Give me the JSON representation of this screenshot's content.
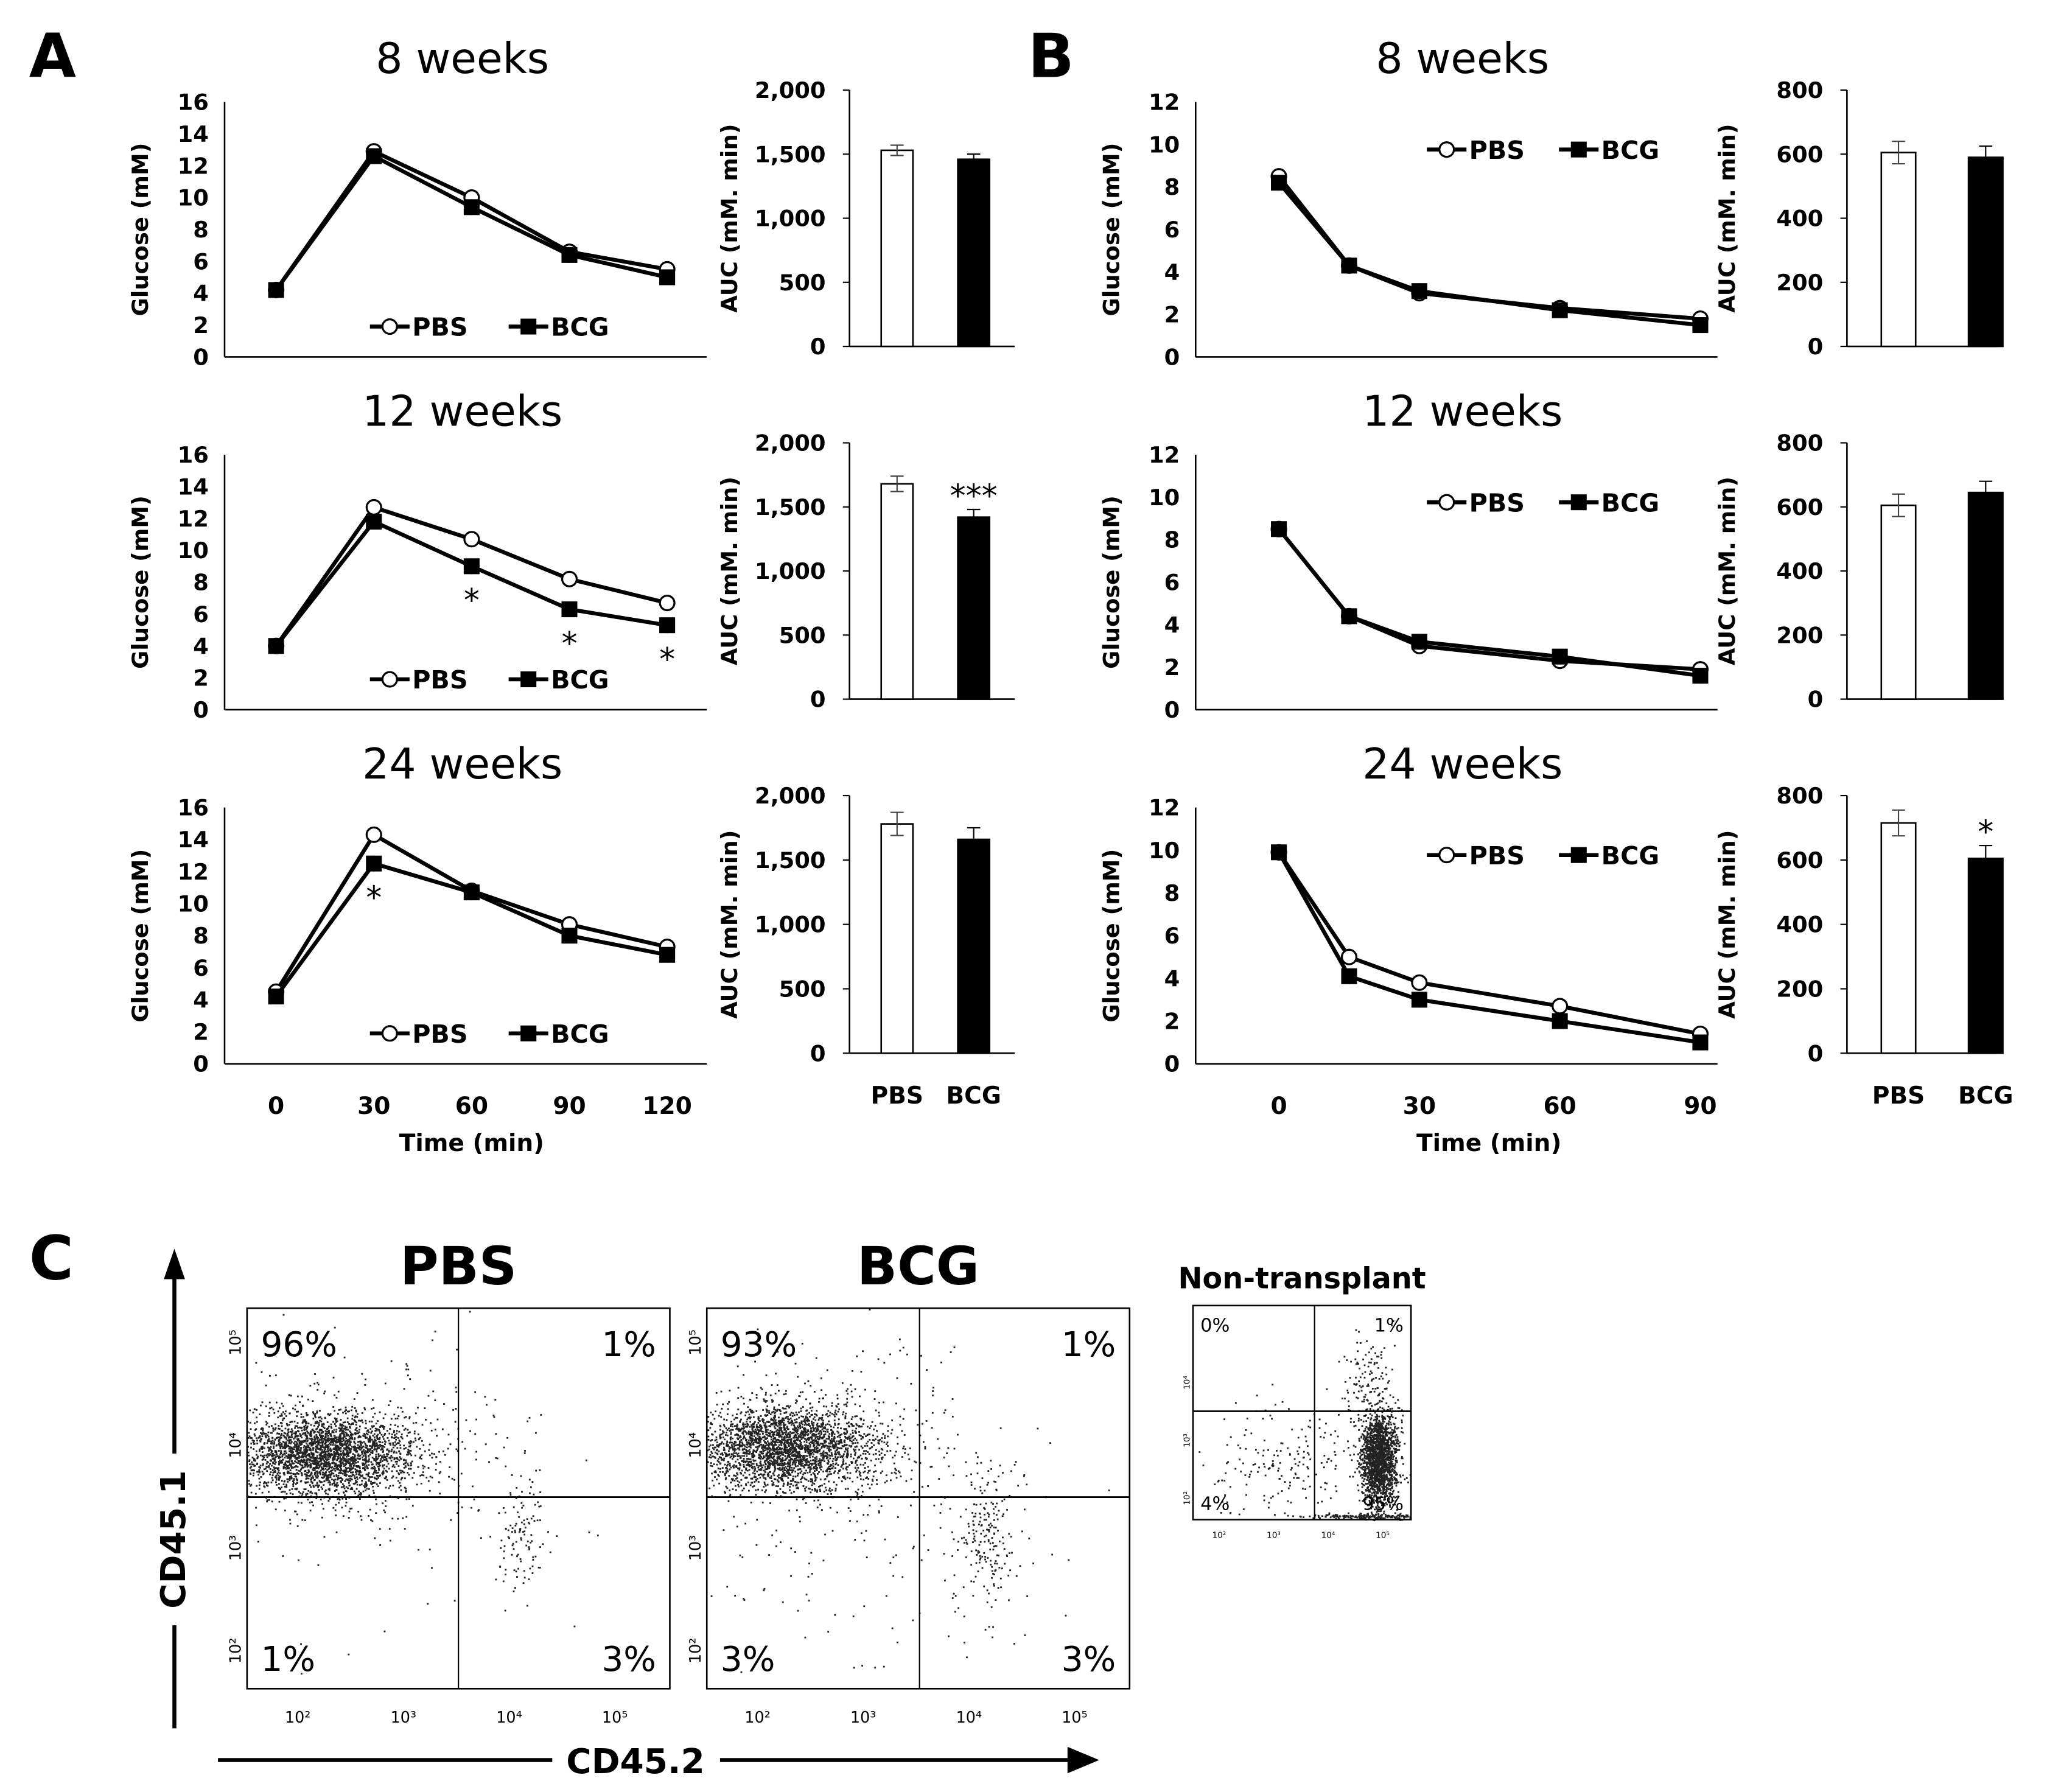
{
  "panel_labels": {
    "a": "A",
    "b": "B",
    "c": "C"
  },
  "chart_data": [
    {
      "id": "A8",
      "type": "line",
      "title": "8 weeks",
      "ylabel": "Glucose (mM)",
      "xlabel": "Time (min)",
      "x": [
        0,
        30,
        60,
        90,
        120
      ],
      "ylim": [
        0,
        16
      ],
      "yticks": [
        0,
        2,
        4,
        6,
        8,
        10,
        12,
        14,
        16
      ],
      "xticks": [
        "0",
        "30",
        "60",
        "90",
        "120"
      ],
      "series": [
        {
          "name": "PBS",
          "values": [
            4.2,
            12.9,
            10.0,
            6.6,
            5.5
          ]
        },
        {
          "name": "BCG",
          "values": [
            4.2,
            12.6,
            9.4,
            6.4,
            5.0
          ]
        }
      ],
      "stars": []
    },
    {
      "id": "A12",
      "type": "line",
      "title": "12 weeks",
      "ylabel": "Glucose (mM)",
      "xlabel": "Time (min)",
      "x": [
        0,
        30,
        60,
        90,
        120
      ],
      "ylim": [
        0,
        16
      ],
      "yticks": [
        0,
        2,
        4,
        6,
        8,
        10,
        12,
        14,
        16
      ],
      "xticks": [
        "0",
        "30",
        "60",
        "90",
        "120"
      ],
      "series": [
        {
          "name": "PBS",
          "values": [
            4.0,
            12.7,
            10.7,
            8.2,
            6.7
          ]
        },
        {
          "name": "BCG",
          "values": [
            4.0,
            11.8,
            9.0,
            6.3,
            5.3
          ]
        }
      ],
      "stars": [
        {
          "x": 60,
          "label": "*"
        },
        {
          "x": 90,
          "label": "*"
        },
        {
          "x": 120,
          "label": "*"
        }
      ]
    },
    {
      "id": "A24",
      "type": "line",
      "title": "24 weeks",
      "ylabel": "Glucose (mM)",
      "xlabel": "Time (min)",
      "x": [
        0,
        30,
        60,
        90,
        120
      ],
      "ylim": [
        0,
        16
      ],
      "yticks": [
        0,
        2,
        4,
        6,
        8,
        10,
        12,
        14,
        16
      ],
      "xticks": [
        "0",
        "30",
        "60",
        "90",
        "120"
      ],
      "series": [
        {
          "name": "PBS",
          "values": [
            4.5,
            14.3,
            10.8,
            8.7,
            7.3
          ]
        },
        {
          "name": "BCG",
          "values": [
            4.2,
            12.5,
            10.7,
            8.0,
            6.8
          ]
        }
      ],
      "stars": [
        {
          "x": 30,
          "label": "*"
        }
      ]
    },
    {
      "id": "Abar8",
      "type": "bar",
      "ylabel": "AUC (mM. min)",
      "categories": [
        "PBS",
        "BCG"
      ],
      "values": [
        1530,
        1460
      ],
      "errors": [
        40,
        40
      ],
      "ylim": [
        0,
        2000
      ],
      "yticks": [
        "0",
        "500",
        "1,000",
        "1,500",
        "2,000"
      ],
      "stars": [
        "",
        ""
      ]
    },
    {
      "id": "Abar12",
      "type": "bar",
      "ylabel": "AUC (mM. min)",
      "categories": [
        "PBS",
        "BCG"
      ],
      "values": [
        1680,
        1420
      ],
      "errors": [
        60,
        60
      ],
      "ylim": [
        0,
        2000
      ],
      "yticks": [
        "0",
        "500",
        "1,000",
        "1,500",
        "2,000"
      ],
      "stars": [
        "",
        "***"
      ]
    },
    {
      "id": "Abar24",
      "type": "bar",
      "ylabel": "AUC (mM. min)",
      "categories": [
        "PBS",
        "BCG"
      ],
      "values": [
        1780,
        1660
      ],
      "errors": [
        90,
        90
      ],
      "ylim": [
        0,
        2000
      ],
      "yticks": [
        "0",
        "500",
        "1,000",
        "1,500",
        "2,000"
      ],
      "stars": [
        "",
        ""
      ]
    },
    {
      "id": "B8",
      "type": "line",
      "title": "8 weeks",
      "ylabel": "Glucose (mM)",
      "xlabel": "Time (min)",
      "x": [
        0,
        15,
        30,
        60,
        90
      ],
      "ylim": [
        0,
        12
      ],
      "yticks": [
        0,
        2,
        4,
        6,
        8,
        10,
        12
      ],
      "xticks": [
        "0",
        "30",
        "60",
        "90"
      ],
      "series": [
        {
          "name": "PBS",
          "values": [
            8.5,
            4.3,
            3.0,
            2.3,
            1.8
          ]
        },
        {
          "name": "BCG",
          "values": [
            8.2,
            4.3,
            3.1,
            2.2,
            1.5
          ]
        }
      ],
      "stars": []
    },
    {
      "id": "B12",
      "type": "line",
      "title": "12 weeks",
      "ylabel": "Glucose (mM)",
      "xlabel": "Time (min)",
      "x": [
        0,
        15,
        30,
        60,
        90
      ],
      "ylim": [
        0,
        12
      ],
      "yticks": [
        0,
        2,
        4,
        6,
        8,
        10,
        12
      ],
      "xticks": [
        "0",
        "30",
        "60",
        "90"
      ],
      "series": [
        {
          "name": "PBS",
          "values": [
            8.5,
            4.4,
            3.0,
            2.3,
            1.9
          ]
        },
        {
          "name": "BCG",
          "values": [
            8.5,
            4.4,
            3.2,
            2.5,
            1.6
          ]
        }
      ],
      "stars": []
    },
    {
      "id": "B24",
      "type": "line",
      "title": "24 weeks",
      "ylabel": "Glucose (mM)",
      "xlabel": "Time (min)",
      "x": [
        0,
        15,
        30,
        60,
        90
      ],
      "ylim": [
        0,
        12
      ],
      "yticks": [
        0,
        2,
        4,
        6,
        8,
        10,
        12
      ],
      "xticks": [
        "0",
        "30",
        "60",
        "90"
      ],
      "series": [
        {
          "name": "PBS",
          "values": [
            9.9,
            5.0,
            3.8,
            2.7,
            1.4
          ]
        },
        {
          "name": "BCG",
          "values": [
            9.9,
            4.1,
            3.0,
            2.0,
            1.0
          ]
        }
      ],
      "stars": []
    },
    {
      "id": "Bbar8",
      "type": "bar",
      "ylabel": "AUC (mM. min)",
      "categories": [
        "PBS",
        "BCG"
      ],
      "values": [
        605,
        590
      ],
      "errors": [
        35,
        35
      ],
      "ylim": [
        0,
        800
      ],
      "yticks": [
        "0",
        "200",
        "400",
        "600",
        "800"
      ],
      "stars": [
        "",
        ""
      ]
    },
    {
      "id": "Bbar12",
      "type": "bar",
      "ylabel": "AUC (mM. min)",
      "categories": [
        "PBS",
        "BCG"
      ],
      "values": [
        605,
        645
      ],
      "errors": [
        35,
        35
      ],
      "ylim": [
        0,
        800
      ],
      "yticks": [
        "0",
        "200",
        "400",
        "600",
        "800"
      ],
      "stars": [
        "",
        ""
      ]
    },
    {
      "id": "Bbar24",
      "type": "bar",
      "ylabel": "AUC (mM. min)",
      "categories": [
        "PBS",
        "BCG"
      ],
      "values": [
        715,
        605
      ],
      "errors": [
        40,
        40
      ],
      "ylim": [
        0,
        800
      ],
      "yticks": [
        "0",
        "200",
        "400",
        "600",
        "800"
      ],
      "stars": [
        "",
        "*"
      ]
    }
  ],
  "flow": {
    "xlabel": "CD45.2",
    "ylabel": "CD45.1",
    "log_ticks": [
      "10²",
      "10³",
      "10⁴",
      "10⁵"
    ],
    "plots": [
      {
        "title": "PBS",
        "quadrants": {
          "ul": "96%",
          "ur": "1%",
          "ll": "1%",
          "lr": "3%"
        }
      },
      {
        "title": "BCG",
        "quadrants": {
          "ul": "93%",
          "ur": "1%",
          "ll": "3%",
          "lr": "3%"
        }
      },
      {
        "title": "Non-transplant",
        "quadrants": {
          "ul": "0%",
          "ur": "1%",
          "ll": "4%",
          "lr": "95%"
        }
      }
    ]
  },
  "colors": {
    "pbs_fill": "#ffffff",
    "bcg_fill": "#000000",
    "line": "#000000"
  }
}
